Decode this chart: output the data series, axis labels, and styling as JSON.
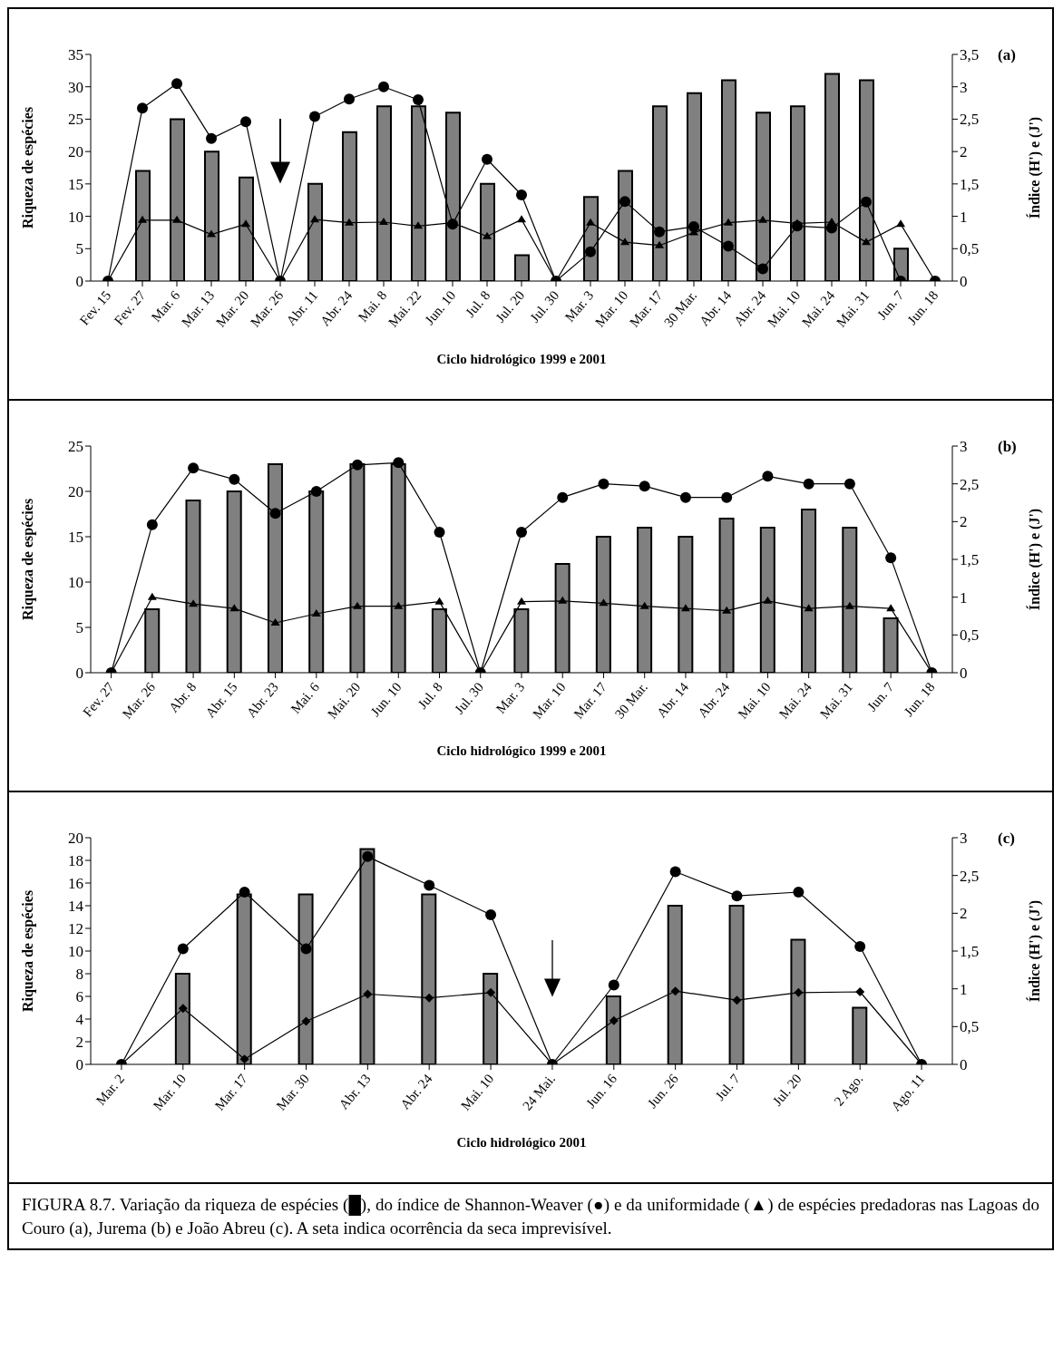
{
  "chart_data": [
    {
      "type": "bar",
      "annotations": [
        "(a)"
      ],
      "xlabel": "Ciclo hidrológico 1999 e 2001",
      "ylabel": "Riqueza de espécies",
      "y2label": "Índice (H') e (J')",
      "categories": [
        "Fev. 15",
        "Fev. 27",
        "Mar. 6",
        "Mar. 13",
        "Mar. 20",
        "Mar. 26",
        "Abr. 11",
        "Abr. 24",
        "Mai. 8",
        "Mai. 22",
        "Jun. 10",
        "Jul. 8",
        "Jul. 20",
        "Jul. 30",
        "Mar. 3",
        "Mar. 10",
        "Mar. 17",
        "30 Mar.",
        "Abr. 14",
        "Abr. 24",
        "Mai. 10",
        "Mai. 24",
        "Mai. 31",
        "Jun. 7",
        "Jun. 18"
      ],
      "series": [
        {
          "type": "bar",
          "color": "#808080",
          "values": [
            0,
            17,
            25,
            20,
            16,
            0,
            15,
            23,
            27,
            27,
            26,
            15,
            4,
            0,
            13,
            17,
            27,
            29,
            31,
            26,
            27,
            32,
            31,
            5,
            0
          ]
        },
        {
          "type": "line",
          "axis": "y2",
          "color": "#000000",
          "marker": "circle",
          "values": [
            0,
            2.67,
            3.05,
            2.2,
            2.46,
            0,
            2.54,
            2.81,
            3.0,
            2.8,
            0.88,
            1.88,
            1.33,
            0,
            0.45,
            1.23,
            0.76,
            0.84,
            0.54,
            0.19,
            0.85,
            0.82,
            1.22,
            0,
            0
          ]
        },
        {
          "type": "line",
          "axis": "y2",
          "color": "#000000",
          "marker": "triangle",
          "values": [
            0,
            0.94,
            0.94,
            0.72,
            0.88,
            0,
            0.95,
            0.9,
            0.91,
            0.85,
            0.9,
            0.69,
            0.95,
            0,
            0.9,
            0.6,
            0.55,
            0.75,
            0.9,
            0.94,
            0.89,
            0.91,
            0.6,
            0.88,
            0
          ]
        }
      ],
      "ylim": [
        0,
        35
      ],
      "yticks": [
        0,
        5,
        10,
        15,
        20,
        25,
        30,
        35
      ],
      "y2lim": [
        0,
        3.5
      ],
      "y2ticks": [
        0,
        {
          "value": 0.5,
          "label": "0,5"
        },
        1,
        {
          "value": 1.5,
          "label": "1,5"
        },
        2,
        {
          "value": 2.5,
          "label": "2,5"
        },
        3,
        {
          "value": 3.5,
          "label": "3,5"
        }
      ]
    },
    {
      "type": "bar",
      "annotations": [
        "(b)"
      ],
      "xlabel": "Ciclo hidrológico 1999 e 2001",
      "ylabel": "Riqueza de espécies",
      "y2label": "Índice (H') e (J')",
      "categories": [
        "Fev. 27",
        "Mar. 26",
        "Abr. 8",
        "Abr. 15",
        "Abr. 23",
        "Mai. 6",
        "Mai. 20",
        "Jun. 10",
        "Jul. 8",
        "Jul. 30",
        "Mar. 3",
        "Mar. 10",
        "Mar. 17",
        "30 Mar.",
        "Abr. 14",
        "Abr. 24",
        "Mai. 10",
        "Mai. 24",
        "Mai. 31",
        "Jun. 7",
        "Jun. 18"
      ],
      "series": [
        {
          "type": "bar",
          "color": "#808080",
          "values": [
            0,
            7,
            19,
            20,
            23,
            20,
            23,
            23,
            7,
            0,
            7,
            12,
            15,
            16,
            15,
            17,
            16,
            18,
            16,
            6,
            0
          ]
        },
        {
          "type": "line",
          "axis": "y2",
          "color": "#000000",
          "marker": "circle",
          "values": [
            0,
            1.96,
            2.71,
            2.56,
            2.11,
            2.4,
            2.75,
            2.78,
            1.86,
            0,
            1.86,
            2.32,
            2.5,
            2.47,
            2.32,
            2.32,
            2.6,
            2.5,
            2.5,
            1.52,
            0
          ]
        },
        {
          "type": "line",
          "axis": "y2",
          "color": "#000000",
          "marker": "triangle",
          "values": [
            0,
            1.0,
            0.91,
            0.85,
            0.66,
            0.78,
            0.88,
            0.88,
            0.94,
            0,
            0.94,
            0.95,
            0.92,
            0.88,
            0.85,
            0.82,
            0.95,
            0.85,
            0.88,
            0.85,
            0
          ]
        }
      ],
      "ylim": [
        0,
        25
      ],
      "yticks": [
        0,
        5,
        10,
        15,
        20,
        25
      ],
      "y2lim": [
        0,
        3
      ],
      "y2ticks": [
        0,
        {
          "value": 0.5,
          "label": "0,5"
        },
        1,
        {
          "value": 1.5,
          "label": "1,5"
        },
        2,
        {
          "value": 2.5,
          "label": "2,5"
        },
        3
      ]
    },
    {
      "type": "bar",
      "xlabel": "Ciclo hidrológico 2001",
      "ylabel": "Riqueza de espécies",
      "y2label": "Índice (H') e (J')",
      "categories": [
        "Mar. 2",
        "Mar. 10",
        "Mar. 17",
        "Mar. 30",
        "Abr. 13",
        "Abr. 24",
        "Mai. 10",
        "24 Mai.",
        "Jun. 16",
        "Jun. 26",
        "Jul. 7",
        "Jul. 20",
        "2 Ago.",
        "Ago. 11"
      ],
      "series": [
        {
          "type": "bar",
          "color": "#808080",
          "values": [
            0,
            8,
            15,
            15,
            19,
            15,
            8,
            0,
            6,
            14,
            14,
            11,
            5,
            0
          ]
        },
        {
          "type": "line",
          "axis": "y2",
          "color": "#000000",
          "marker": "circle",
          "values": [
            0,
            1.53,
            2.28,
            1.53,
            2.75,
            2.37,
            1.98,
            0,
            1.05,
            2.55,
            2.23,
            2.28,
            1.56,
            0
          ]
        },
        {
          "type": "line",
          "axis": "y2",
          "color": "#000000",
          "marker": "diamond",
          "values": [
            0,
            0.74,
            0.07,
            0.57,
            0.93,
            0.88,
            0.95,
            0,
            0.58,
            0.97,
            0.85,
            0.95,
            0.96,
            0
          ]
        }
      ],
      "ylim": [
        0,
        20
      ],
      "yticks": [
        0,
        2,
        4,
        6,
        8,
        10,
        12,
        14,
        16,
        18,
        20
      ],
      "y2lim": [
        0,
        3
      ],
      "y2ticks": [
        0,
        {
          "value": 0.5,
          "label": "0,5"
        },
        1,
        {
          "value": 1.5,
          "label": "1,5"
        },
        2,
        {
          "value": 2.5,
          "label": "2,5"
        },
        3
      ],
      "annotations": [
        "(c)",
        "FIGURA 8.7. Variação da riqueza de espécies (█), do índice de Shannon-Weaver (●) e da uniformidade (▲) de espécies predadoras nas Lagoas do Couro (a), Jurema (b) e João Abreu (c). A seta indica ocorrência da seca imprevisível."
      ]
    }
  ]
}
